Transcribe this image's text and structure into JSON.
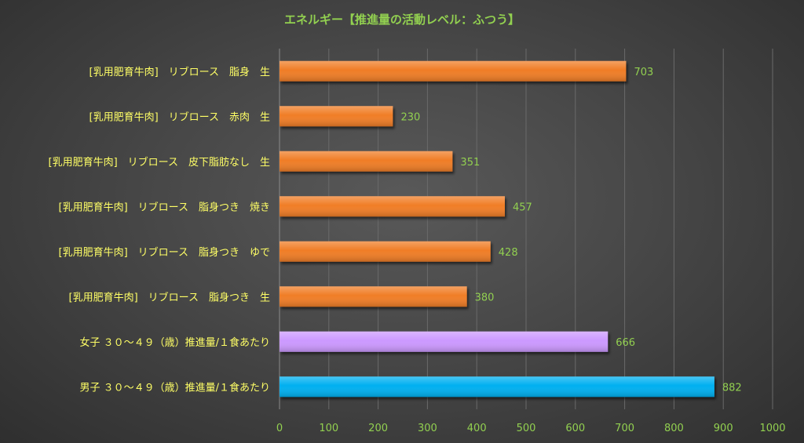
{
  "chart_data": {
    "type": "bar",
    "orientation": "horizontal",
    "title": "エネルギー【推進量の活動レベル：ふつう】",
    "xlabel": "",
    "ylabel": "",
    "xlim": [
      0,
      1000
    ],
    "ticks": [
      0,
      100,
      200,
      300,
      400,
      500,
      600,
      700,
      800,
      900,
      1000
    ],
    "grid": true,
    "legend": "none",
    "categories": [
      "[乳用肥育牛肉]　リブロース　脂身　生",
      "[乳用肥育牛肉]　リブロース　赤肉　生",
      "[乳用肥育牛肉]　リブロース　皮下脂肪なし　生",
      "[乳用肥育牛肉]　リブロース　脂身つき　焼き",
      "[乳用肥育牛肉]　リブロース　脂身つき　ゆで",
      "[乳用肥育牛肉]　リブロース　脂身つき　生",
      "女子 ３０～４９（歳）推進量/１食あたり",
      "男子 ３０～４９（歳）推進量/１食あたり"
    ],
    "values": [
      703,
      230,
      351,
      457,
      428,
      380,
      666,
      882
    ],
    "bar_colors": [
      "#f07d28",
      "#f07d28",
      "#f07d28",
      "#f07d28",
      "#f07d28",
      "#f07d28",
      "#cc99ff",
      "#00b0f0"
    ],
    "colors": {
      "title": "#92d050",
      "category_labels": "#ffff66",
      "data_labels": "#92d050",
      "tick_labels": "#92d050",
      "gridlines": "#6a6a6a"
    }
  }
}
